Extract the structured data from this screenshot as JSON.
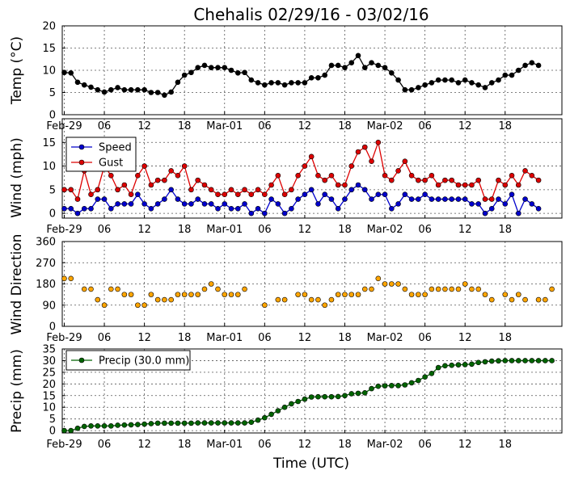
{
  "title": "Chehalis 02/29/16 - 03/02/16",
  "xlabel": "Time (UTC)",
  "x_tick_labels": [
    "Feb-29",
    "06",
    "12",
    "18",
    "Mar-01",
    "06",
    "12",
    "18",
    "Mar-02",
    "06",
    "12",
    "18"
  ],
  "colors": {
    "temp": "#000000",
    "wind_speed": "#0000cc",
    "wind_gust": "#dd0000",
    "wind_direction": "#ffa500",
    "precip": "#006400",
    "grid": "#555555"
  },
  "chart_data": [
    {
      "type": "line",
      "id": "temp",
      "ylabel": "Temp (°C)",
      "ylim": [
        0,
        20
      ],
      "yticks": [
        0,
        5,
        10,
        15,
        20
      ],
      "x_unit": "hours since Feb-29 00:00 UTC",
      "x_start": 0,
      "x_step": 1,
      "grid": true,
      "series": [
        {
          "values": [
            9.5,
            9.4,
            7.3,
            6.7,
            6.2,
            5.6,
            5.1,
            5.6,
            6.1,
            5.6,
            5.6,
            5.6,
            5.6,
            5.0,
            5.0,
            4.4,
            5.1,
            7.3,
            8.9,
            9.5,
            10.6,
            11.1,
            10.6,
            10.6,
            10.6,
            10.0,
            9.4,
            9.5,
            7.8,
            7.2,
            6.7,
            7.2,
            7.2,
            6.7,
            7.2,
            7.2,
            7.2,
            8.3,
            8.3,
            8.9,
            11.1,
            11.1,
            10.6,
            11.7,
            13.3,
            10.6,
            11.7,
            11.1,
            10.6,
            9.4,
            7.8,
            5.6,
            5.6,
            6.1,
            6.7,
            7.2,
            7.8,
            7.8,
            7.8,
            7.2,
            7.8,
            7.2,
            6.7,
            6.1,
            7.2,
            7.8,
            8.9,
            8.9,
            10.0,
            11.1,
            11.7,
            11.1
          ]
        }
      ]
    },
    {
      "type": "line",
      "id": "wind",
      "ylabel": "Wind (mph)",
      "ylim": [
        -1,
        20
      ],
      "yticks": [
        0,
        5,
        10,
        15
      ],
      "x_unit": "hours since Feb-29 00:00 UTC",
      "x_start": 0,
      "x_step": 1,
      "grid": true,
      "legend": "top-left",
      "series": [
        {
          "name": "Speed",
          "values": [
            1,
            1,
            0,
            1,
            1,
            3,
            3,
            1,
            2,
            2,
            2,
            4,
            2,
            1,
            2,
            3,
            5,
            3,
            2,
            2,
            3,
            2,
            2,
            1,
            2,
            1,
            1,
            2,
            0,
            1,
            0,
            3,
            2,
            0,
            1,
            3,
            4,
            5,
            2,
            4,
            3,
            1,
            3,
            5,
            6,
            5,
            3,
            4,
            4,
            1,
            2,
            4,
            3,
            3,
            4,
            3,
            3,
            3,
            3,
            3,
            3,
            2,
            2,
            0,
            1,
            3,
            2,
            4,
            0,
            3,
            2,
            1
          ]
        },
        {
          "name": "Gust",
          "values": [
            5,
            5,
            3,
            9,
            4,
            5,
            10,
            8,
            5,
            6,
            4,
            8,
            10,
            6,
            7,
            7,
            9,
            8,
            10,
            5,
            7,
            6,
            5,
            4,
            4,
            5,
            4,
            5,
            4,
            5,
            4,
            6,
            8,
            4,
            5,
            8,
            10,
            12,
            8,
            7,
            8,
            6,
            6,
            10,
            13,
            14,
            11,
            15,
            8,
            7,
            9,
            11,
            8,
            7,
            7,
            8,
            6,
            7,
            7,
            6,
            6,
            6,
            7,
            3,
            3,
            7,
            6,
            8,
            6,
            9,
            8,
            7
          ]
        }
      ]
    },
    {
      "type": "scatter",
      "id": "wind_direction",
      "ylabel": "Wind Direction",
      "ylim": [
        0,
        360
      ],
      "yticks": [
        0,
        90,
        180,
        270,
        360
      ],
      "x_unit": "hours since Feb-29 00:00 UTC",
      "grid": true,
      "series": [
        {
          "points": [
            [
              0,
              203
            ],
            [
              1,
              203
            ],
            [
              3,
              158
            ],
            [
              4,
              158
            ],
            [
              5,
              113
            ],
            [
              6,
              90
            ],
            [
              7,
              158
            ],
            [
              8,
              158
            ],
            [
              9,
              135
            ],
            [
              10,
              135
            ],
            [
              11,
              90
            ],
            [
              12,
              90
            ],
            [
              13,
              135
            ],
            [
              14,
              113
            ],
            [
              15,
              113
            ],
            [
              16,
              113
            ],
            [
              17,
              135
            ],
            [
              18,
              135
            ],
            [
              19,
              135
            ],
            [
              20,
              135
            ],
            [
              21,
              158
            ],
            [
              22,
              180
            ],
            [
              23,
              158
            ],
            [
              24,
              135
            ],
            [
              25,
              135
            ],
            [
              26,
              135
            ],
            [
              27,
              158
            ],
            [
              30,
              90
            ],
            [
              32,
              113
            ],
            [
              33,
              113
            ],
            [
              35,
              135
            ],
            [
              36,
              135
            ],
            [
              37,
              113
            ],
            [
              38,
              113
            ],
            [
              39,
              90
            ],
            [
              40,
              113
            ],
            [
              41,
              135
            ],
            [
              42,
              135
            ],
            [
              43,
              135
            ],
            [
              44,
              135
            ],
            [
              45,
              158
            ],
            [
              46,
              158
            ],
            [
              47,
              203
            ],
            [
              48,
              180
            ],
            [
              49,
              180
            ],
            [
              50,
              180
            ],
            [
              51,
              158
            ],
            [
              52,
              135
            ],
            [
              53,
              135
            ],
            [
              54,
              135
            ],
            [
              55,
              158
            ],
            [
              56,
              158
            ],
            [
              57,
              158
            ],
            [
              58,
              158
            ],
            [
              59,
              158
            ],
            [
              60,
              180
            ],
            [
              61,
              158
            ],
            [
              62,
              158
            ],
            [
              63,
              135
            ],
            [
              64,
              113
            ],
            [
              66,
              135
            ],
            [
              67,
              113
            ],
            [
              68,
              135
            ],
            [
              69,
              113
            ],
            [
              71,
              113
            ],
            [
              72,
              113
            ],
            [
              73,
              158
            ]
          ]
        }
      ]
    },
    {
      "type": "line",
      "id": "precip",
      "ylabel": "Precip (mm)",
      "ylim": [
        -1,
        35
      ],
      "yticks": [
        0,
        5,
        10,
        15,
        20,
        25,
        30,
        35
      ],
      "x_unit": "hours since Feb-29 00:00 UTC",
      "x_start": 0,
      "x_step": 1,
      "grid": true,
      "legend": "top-left",
      "series": [
        {
          "name": "Precip (30.0 mm)",
          "values": [
            0,
            0,
            1,
            1.8,
            2,
            2,
            2,
            2,
            2.3,
            2.4,
            2.5,
            2.6,
            2.8,
            3,
            3.2,
            3.2,
            3.2,
            3.2,
            3.2,
            3.2,
            3.3,
            3.3,
            3.3,
            3.3,
            3.3,
            3.3,
            3.3,
            3.3,
            3.6,
            4.5,
            5.5,
            7,
            8.5,
            10,
            11.5,
            12.5,
            13.5,
            14.4,
            14.5,
            14.5,
            14.5,
            14.6,
            15,
            15.8,
            16,
            16.2,
            18,
            19,
            19.2,
            19.3,
            19.3,
            19.6,
            20.5,
            21.5,
            23,
            24.5,
            27,
            27.8,
            28,
            28.2,
            28.3,
            28.5,
            29.2,
            29.5,
            29.8,
            29.9,
            30,
            30,
            30,
            30,
            30,
            30,
            30,
            30
          ]
        }
      ]
    }
  ]
}
